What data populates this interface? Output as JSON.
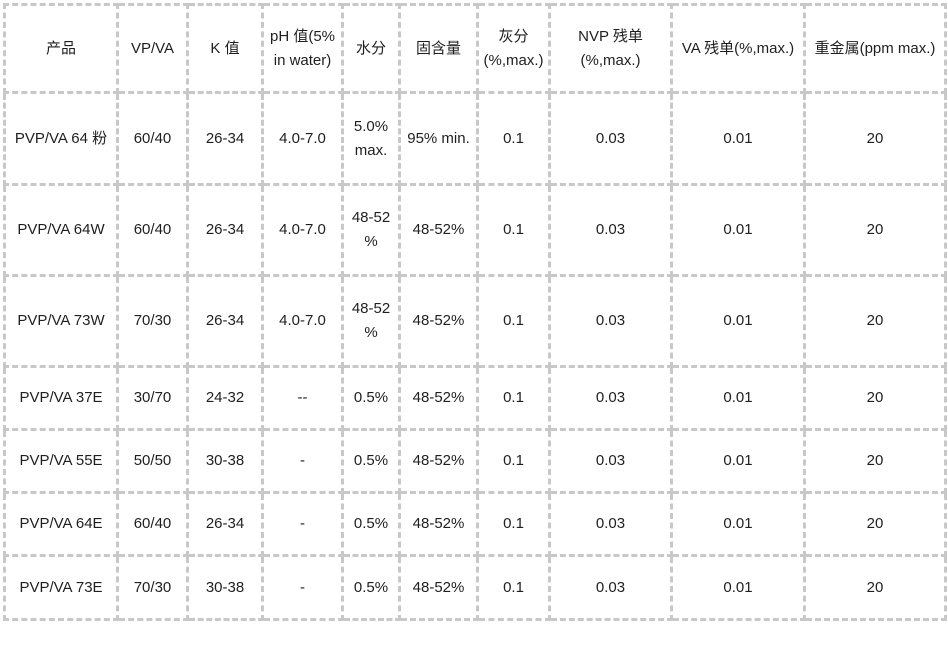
{
  "table": {
    "columns": [
      {
        "label": "产品"
      },
      {
        "label": "VP/VA"
      },
      {
        "label": "K 值"
      },
      {
        "label": "pH 值(5% in water)"
      },
      {
        "label": "水分"
      },
      {
        "label": "固含量"
      },
      {
        "label": "灰分 (%,max.)"
      },
      {
        "label": "NVP 残单 (%,max.)"
      },
      {
        "label": "VA 残单(%,max.)"
      },
      {
        "label": "重金属(ppm max.)"
      }
    ],
    "rows": [
      [
        "PVP/VA 64 粉",
        "60/40",
        "26-34",
        "4.0-7.0",
        "5.0% max.",
        "95% min.",
        "0.1",
        "0.03",
        "0.01",
        "20"
      ],
      [
        "PVP/VA 64W",
        "60/40",
        "26-34",
        "4.0-7.0",
        "48-52 %",
        "48-52%",
        "0.1",
        "0.03",
        "0.01",
        "20"
      ],
      [
        "PVP/VA 73W",
        "70/30",
        "26-34",
        "4.0-7.0",
        "48-52 %",
        "48-52%",
        "0.1",
        "0.03",
        "0.01",
        "20"
      ],
      [
        "PVP/VA 37E",
        "30/70",
        "24-32",
        "--",
        "0.5%",
        "48-52%",
        "0.1",
        "0.03",
        "0.01",
        "20"
      ],
      [
        "PVP/VA 55E",
        "50/50",
        "30-38",
        "-",
        "0.5%",
        "48-52%",
        "0.1",
        "0.03",
        "0.01",
        "20"
      ],
      [
        "PVP/VA 64E",
        "60/40",
        "26-34",
        "-",
        "0.5%",
        "48-52%",
        "0.1",
        "0.03",
        "0.01",
        "20"
      ],
      [
        "PVP/VA 73E",
        "70/30",
        "30-38",
        "-",
        "0.5%",
        "48-52%",
        "0.1",
        "0.03",
        "0.01",
        "20"
      ]
    ],
    "colors": {
      "border": "#c8c8c8",
      "text": "#1f1f1f",
      "cell_background": "#ffffff"
    }
  }
}
